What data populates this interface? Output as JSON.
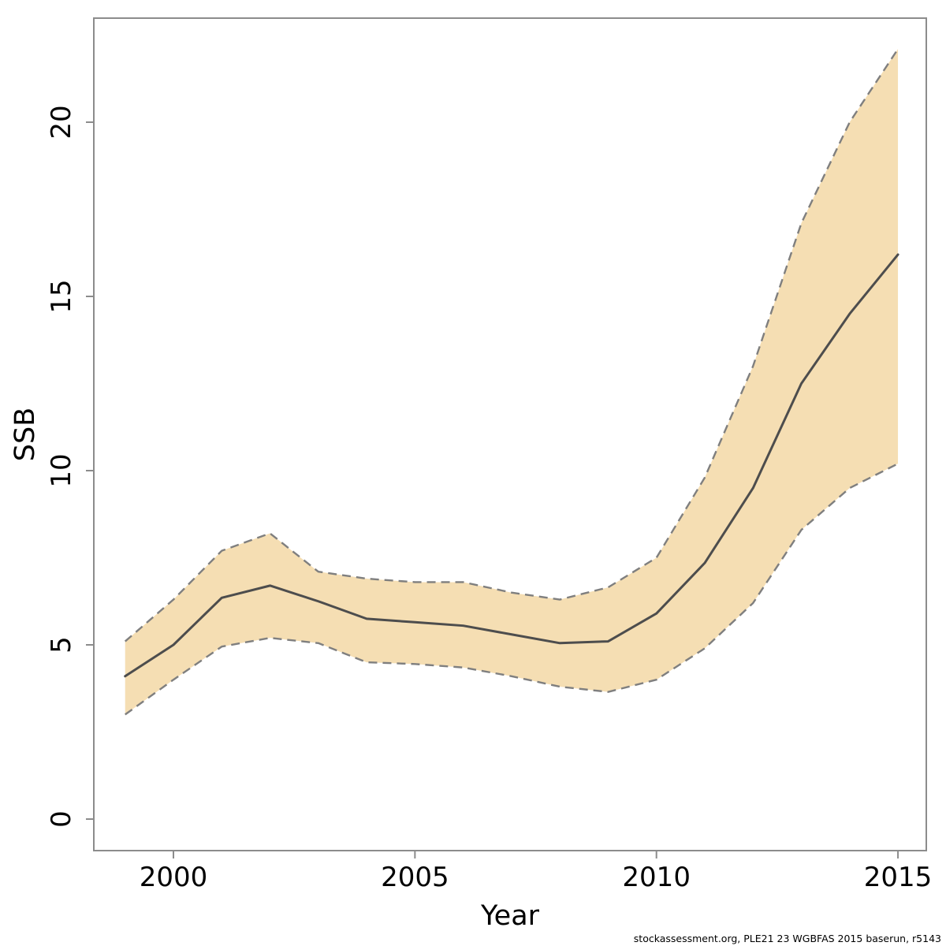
{
  "page": {
    "background": "#ffffff"
  },
  "footer": {
    "text": "stockassessment.org, PLE21 23 WGBFAS 2015 baserun, r5143"
  },
  "chart_data": {
    "type": "line",
    "subtype": "line-with-confidence-band",
    "title": "",
    "xlabel": "Year",
    "ylabel": "SSB",
    "x": [
      1999,
      2000,
      2001,
      2002,
      2003,
      2004,
      2005,
      2006,
      2007,
      2008,
      2009,
      2010,
      2011,
      2012,
      2013,
      2014,
      2015
    ],
    "series": [
      {
        "name": "SSB central estimate",
        "style": "solid",
        "color": "#4d4d4d",
        "values": [
          4.1,
          5.0,
          6.35,
          6.7,
          6.25,
          5.75,
          5.65,
          5.55,
          5.3,
          5.05,
          5.1,
          5.9,
          7.35,
          9.5,
          12.5,
          14.5,
          16.2
        ]
      },
      {
        "name": "upper confidence bound",
        "style": "dashed",
        "color": "#7f7f7f",
        "values": [
          5.1,
          6.3,
          7.7,
          8.2,
          7.1,
          6.9,
          6.8,
          6.8,
          6.5,
          6.3,
          6.65,
          7.5,
          9.8,
          13.0,
          17.1,
          20.0,
          22.1
        ]
      },
      {
        "name": "lower confidence bound",
        "style": "dashed",
        "color": "#7f7f7f",
        "values": [
          3.0,
          4.0,
          4.95,
          5.2,
          5.05,
          4.5,
          4.45,
          4.35,
          4.1,
          3.8,
          3.65,
          4.0,
          4.9,
          6.2,
          8.3,
          9.5,
          10.2
        ]
      }
    ],
    "band": {
      "fill": "#f5deb3",
      "between": [
        "lower confidence bound",
        "upper confidence bound"
      ]
    },
    "x_ticks": [
      2000,
      2005,
      2010,
      2015
    ],
    "x_tick_labels": [
      "2000",
      "2005",
      "2010",
      "2015"
    ],
    "y_ticks": [
      0,
      5,
      10,
      15,
      20
    ],
    "y_tick_labels": [
      "0",
      "5",
      "10",
      "15",
      "20"
    ],
    "xlim": [
      1998.35,
      2015.65
    ],
    "ylim": [
      -0.9,
      23.0
    ],
    "grid": false,
    "legend": "none",
    "frame_color": "#8c8c8c"
  }
}
